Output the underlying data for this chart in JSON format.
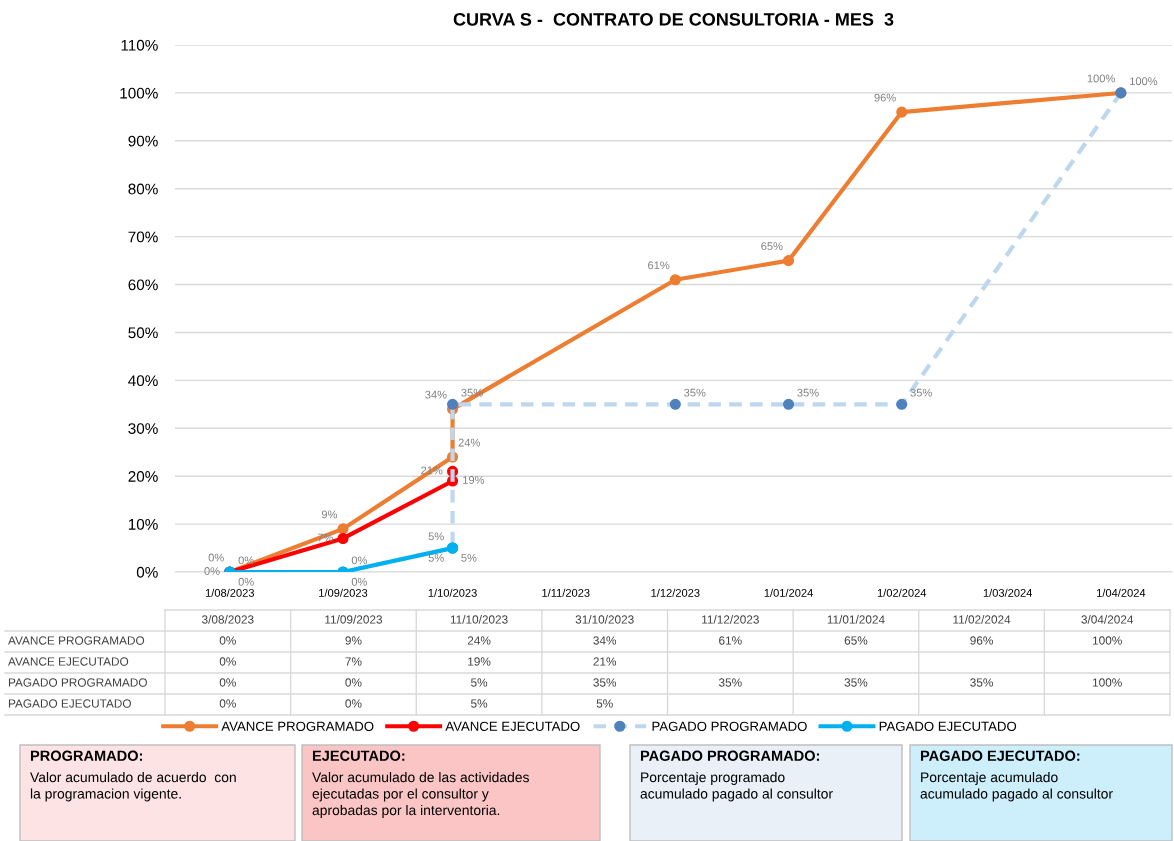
{
  "chart_data": {
    "type": "line",
    "title": "CURVA S -  CONTRATO DE CONSULTORIA - MES  3",
    "series": [
      {
        "name": "AVANCE PROGRAMADO",
        "color": "#ed7d31",
        "line_style": "solid",
        "x": [
          "2023-08-01",
          "2023-09-01",
          "2023-10-01",
          "2023-10-01",
          "2023-12-01",
          "2024-01-01",
          "2024-02-01",
          "2024-04-01"
        ],
        "values": [
          0,
          9,
          24,
          34,
          61,
          65,
          96,
          100
        ],
        "value_labels": [
          "0%",
          "9%",
          "24%",
          "34%",
          "61%",
          "65%",
          "96%",
          "100%"
        ]
      },
      {
        "name": "AVANCE EJECUTADO",
        "color": "#ff0000",
        "line_style": "solid",
        "x": [
          "2023-08-01",
          "2023-09-01",
          "2023-10-01",
          "2023-10-01"
        ],
        "values": [
          0,
          7,
          19,
          21
        ],
        "value_labels": [
          "0%",
          "7%",
          "19%",
          "21%"
        ]
      },
      {
        "name": "PAGADO PROGRAMADO",
        "color": "#bdd7ee",
        "line_style": "dashed",
        "x": [
          "2023-08-01",
          "2023-09-01",
          "2023-10-01",
          "2023-10-01",
          "2023-12-01",
          "2024-01-01",
          "2024-02-01",
          "2024-04-01"
        ],
        "values": [
          0,
          0,
          5,
          35,
          35,
          35,
          35,
          100
        ],
        "value_labels": [
          "0%",
          "0%",
          "5%",
          "35%",
          "35%",
          "35%",
          "35%",
          "100%"
        ]
      },
      {
        "name": "PAGADO EJECUTADO",
        "color": "#00b0f0",
        "line_style": "solid",
        "x": [
          "2023-08-01",
          "2023-09-01",
          "2023-10-01",
          "2023-10-01"
        ],
        "values": [
          0,
          0,
          5,
          5
        ],
        "value_labels": [
          "0%",
          "0%",
          "5%",
          "5%"
        ]
      }
    ],
    "marker": "circle",
    "xlim": [
      "2023-07-17",
      "2024-04-15"
    ],
    "xticks": [
      {
        "value": "2023-08-01",
        "label": "1/08/2023"
      },
      {
        "value": "2023-09-01",
        "label": "1/09/2023"
      },
      {
        "value": "2023-10-01",
        "label": "1/10/2023"
      },
      {
        "value": "2023-11-01",
        "label": "1/11/2023"
      },
      {
        "value": "2023-12-01",
        "label": "1/12/2023"
      },
      {
        "value": "2024-01-01",
        "label": "1/01/2024"
      },
      {
        "value": "2024-02-01",
        "label": "1/02/2024"
      },
      {
        "value": "2024-03-01",
        "label": "1/03/2024"
      },
      {
        "value": "2024-04-01",
        "label": "1/04/2024"
      }
    ],
    "ylim": [
      0,
      110
    ],
    "yticks": [
      {
        "value": 0,
        "label": "0%"
      },
      {
        "value": 10,
        "label": "10%"
      },
      {
        "value": 20,
        "label": "20%"
      },
      {
        "value": 30,
        "label": "30%"
      },
      {
        "value": 40,
        "label": "40%"
      },
      {
        "value": 50,
        "label": "50%"
      },
      {
        "value": 60,
        "label": "60%"
      },
      {
        "value": 70,
        "label": "70%"
      },
      {
        "value": 80,
        "label": "80%"
      },
      {
        "value": 90,
        "label": "90%"
      },
      {
        "value": 100,
        "label": "100%"
      },
      {
        "value": 110,
        "label": "110%"
      }
    ],
    "grid": "y",
    "legend": "bottom",
    "data_labels": true,
    "annotations": [
      "3/08/2023",
      "11/09/2023",
      "11/10/2023",
      "31/10/2023",
      "11/12/2023",
      "11/01/2024",
      "11/02/2024",
      "3/04/2024",
      "PROGRAMADO:\nValor acumulado de acuerdo  con\nla programacion vigente.",
      "EJECUTADO:\nValor acumulado de las actividades\nejecutadas por el consultor y\naprobadas por la interventoria.",
      "PAGADO PROGRAMADO:\nPorcentaje programado\nacumulado pagado al consultor",
      "PAGADO EJECUTADO:\nPorcentaje acumulado\nacumulado pagado al consultor"
    ]
  }
}
